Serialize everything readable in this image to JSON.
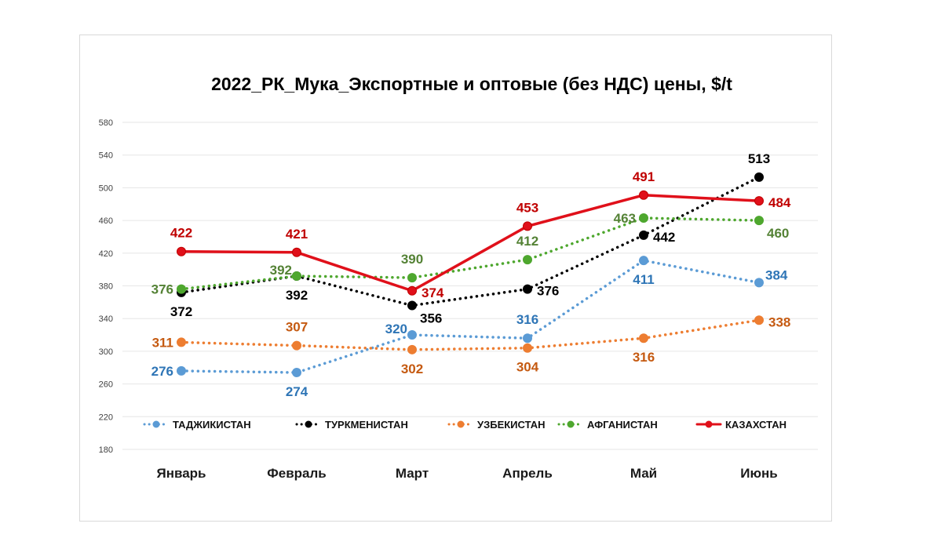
{
  "chart_data": {
    "type": "line",
    "title": "2022_РК_Мука_Экспортные и оптовые (без НДС) цены, $/t",
    "xlabel": "",
    "ylabel": "",
    "categories": [
      "Январь",
      "Февраль",
      "Март",
      "Апрель",
      "Май",
      "Июнь"
    ],
    "ylim": [
      180,
      580
    ],
    "yticks": [
      180,
      220,
      260,
      300,
      340,
      380,
      420,
      460,
      500,
      540,
      580
    ],
    "grid": true,
    "legend_position": "bottom",
    "series": [
      {
        "name": "ТАДЖИКИСТАН",
        "color": "#5b9bd5",
        "label_color": "#2e75b6",
        "style": "dotted",
        "values": [
          276,
          274,
          320,
          316,
          411,
          384
        ],
        "label_pos": [
          "left",
          "below",
          "above-left",
          "above",
          "below",
          "above-right"
        ]
      },
      {
        "name": "ТУРКМЕНИСТАН",
        "color": "#000000",
        "label_color": "#000000",
        "style": "dotted",
        "values": [
          372,
          392,
          356,
          376,
          442,
          513
        ],
        "label_pos": [
          "below",
          "below",
          "below-right",
          "right",
          "right",
          "above"
        ]
      },
      {
        "name": "УЗБЕКИСТАН",
        "color": "#ed7d31",
        "label_color": "#c55a11",
        "style": "dotted",
        "values": [
          311,
          307,
          302,
          304,
          316,
          338
        ],
        "label_pos": [
          "left",
          "above",
          "below",
          "below",
          "below",
          "right"
        ]
      },
      {
        "name": "АФГАНИСТАН",
        "color": "#4ea72e",
        "label_color": "#548235",
        "style": "dotted",
        "values": [
          376,
          392,
          390,
          412,
          463,
          460
        ],
        "label_pos": [
          "left",
          "above-left",
          "above",
          "above",
          "left",
          "below-right"
        ]
      },
      {
        "name": "КАЗАХСТАН",
        "color": "#e0101a",
        "label_color": "#c00000",
        "style": "solid",
        "values": [
          422,
          421,
          374,
          453,
          491,
          484
        ],
        "label_pos": [
          "above",
          "above",
          "right",
          "above",
          "above",
          "right"
        ]
      }
    ]
  }
}
